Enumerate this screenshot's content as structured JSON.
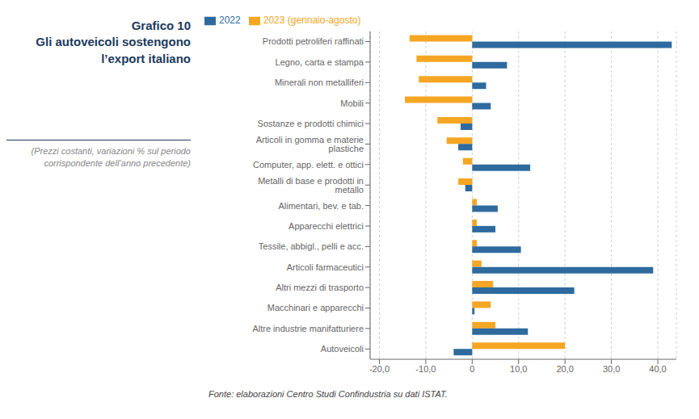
{
  "chart_data": {
    "type": "bar",
    "orientation": "horizontal",
    "title": "Grafico 10\nGli autoveicoli sostengono\nl’export italiano",
    "subtitle": "(Prezzi costanti, variazioni % sul periodo\ncorrispondente dell’anno precedente)",
    "annotations": [
      "Fonte: elaborazioni Centro Studi Confindustria su dati ISTAT."
    ],
    "categories": [
      "Autoveicoli",
      "Altre industrie manifatturiere",
      "Macchinari e apparecchi",
      "Altri mezzi di trasporto",
      "Articoli farmaceutici",
      "Tessile, abbigl., pelli e acc.",
      "Apparecchi elettrici",
      "Alimentari, bev. e tab.",
      "Metalli di base e prodotti in metallo",
      "Computer, app. elett. e ottici",
      "Articoli in gomma e materie plastiche",
      "Sostanze e prodotti chimici",
      "Mobili",
      "Minerali non metalliferi",
      "Legno, carta e stampa",
      "Prodotti petroliferi raffinati"
    ],
    "series": [
      {
        "name": "2023 (gennaio-agosto)",
        "color": "#F5A623",
        "values": [
          20.0,
          5.0,
          4.0,
          4.5,
          2.0,
          1.0,
          1.0,
          1.0,
          -3.0,
          -2.0,
          -5.5,
          -7.5,
          -14.5,
          -11.5,
          -12.0,
          -13.5
        ]
      },
      {
        "name": "2022",
        "color": "#2E6A9E",
        "values": [
          -4.0,
          12.0,
          0.5,
          22.0,
          39.0,
          10.5,
          5.0,
          5.5,
          -1.5,
          12.5,
          -3.0,
          -2.5,
          4.0,
          3.0,
          7.5,
          43.0
        ]
      }
    ],
    "xlim": [
      -22,
      44
    ],
    "xticks": [
      {
        "value": -20.0,
        "label": "-20,0"
      },
      {
        "value": -10.0,
        "label": "-10,0"
      },
      0,
      {
        "value": 10.0,
        "label": "10,0"
      },
      {
        "value": 20.0,
        "label": "20,0"
      },
      {
        "value": 30.0,
        "label": "30,0"
      },
      {
        "value": 40.0,
        "label": "40,0"
      }
    ],
    "grid": true,
    "legend": "upper left"
  }
}
